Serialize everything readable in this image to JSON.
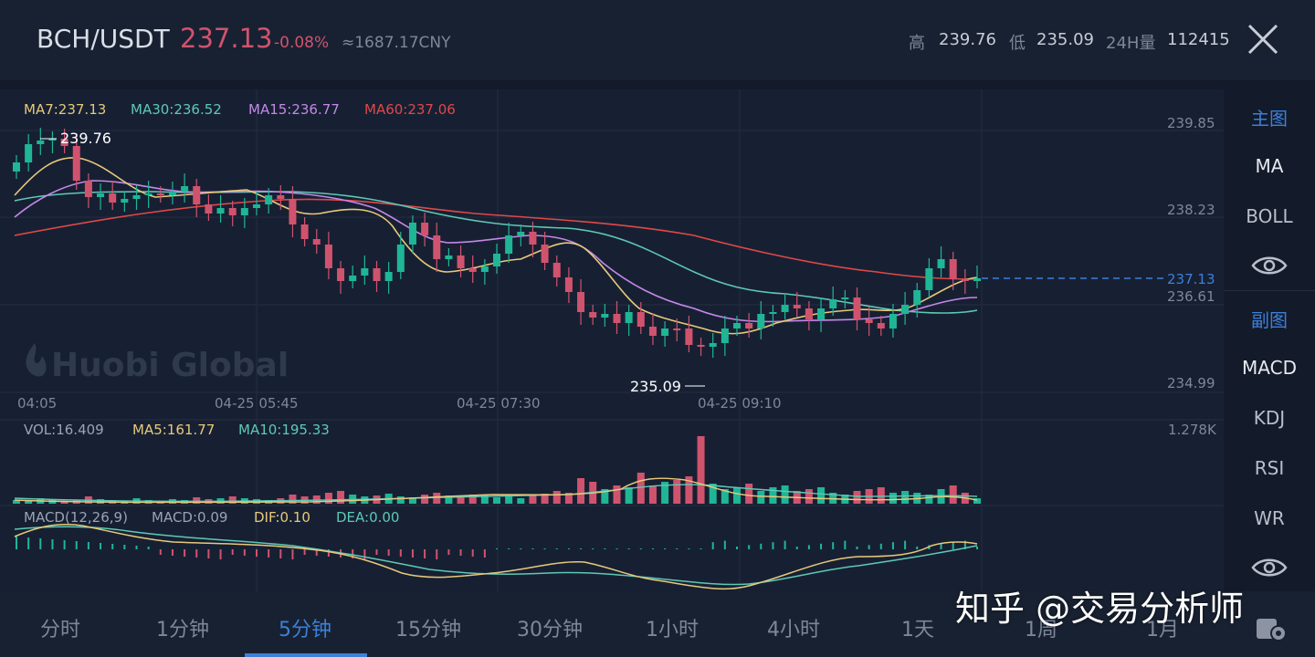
{
  "header": {
    "pair": "BCH/USDT",
    "price": "237.13",
    "change": "-0.08%",
    "cny": "≈1687.17CNY",
    "high_label": "高",
    "high_value": "239.76",
    "low_label": "低",
    "low_value": "235.09",
    "volume_label": "24H量",
    "volume_value": "112415"
  },
  "main_chart": {
    "indicators": [
      {
        "label": "MA7:237.13",
        "color": "#e8c97a"
      },
      {
        "label": "MA30:236.52",
        "color": "#5ec9b5"
      },
      {
        "label": "MA15:236.77",
        "color": "#c488e8"
      },
      {
        "label": "MA60:237.06",
        "color": "#e04848"
      }
    ],
    "y_ticks": [
      "239.85",
      "238.23",
      "236.61",
      "234.99"
    ],
    "current_price_tag": "237.13",
    "high_marker": "239.76",
    "low_marker": "235.09",
    "x_ticks": [
      "04:05",
      "04-25 05:45",
      "04-25 07:30",
      "04-25 09:10"
    ],
    "logo": "Huobi Global"
  },
  "volume_chart": {
    "indicators": [
      {
        "label": "VOL:16.409",
        "color": "#9aa3b2"
      },
      {
        "label": "MA5:161.77",
        "color": "#e8c97a"
      },
      {
        "label": "MA10:195.33",
        "color": "#5ec9b5"
      }
    ],
    "max_label": "1.278K"
  },
  "macd_chart": {
    "indicators": [
      {
        "label": "MACD(12,26,9)",
        "color": "#9aa3b2"
      },
      {
        "label": "MACD:0.09",
        "color": "#9aa3b2"
      },
      {
        "label": "DIF:0.10",
        "color": "#e8c97a"
      },
      {
        "label": "DEA:0.00",
        "color": "#5ec9b5"
      }
    ]
  },
  "side_panel": {
    "main_label": "主图",
    "ma": "MA",
    "boll": "BOLL",
    "sub_label": "副图",
    "macd": "MACD",
    "kdj": "KDJ",
    "rsi": "RSI",
    "wr": "WR"
  },
  "periods": [
    "分时",
    "1分钟",
    "5分钟",
    "15分钟",
    "30分钟",
    "1小时",
    "4小时",
    "1天",
    "1周",
    "1月"
  ],
  "active_period": "5分钟",
  "watermark": "知乎 @交易分析师",
  "colors": {
    "up": "#1fb696",
    "down": "#d0536e",
    "accent": "#3d7fd9",
    "ma7": "#e8c97a",
    "ma15": "#c488e8",
    "ma30": "#5ec9b5",
    "ma60": "#e04848"
  },
  "chart_data": {
    "type": "candlestick",
    "interval": "5m",
    "x_ticks": [
      "04:05",
      "04-25 05:45",
      "04-25 07:30",
      "04-25 09:10"
    ],
    "ylim": [
      234.99,
      239.85
    ],
    "y_ticks": [
      239.85,
      238.23,
      236.61,
      234.99
    ],
    "high": 239.76,
    "low": 235.09,
    "last": 237.13,
    "volume_max": "1.278K"
  }
}
